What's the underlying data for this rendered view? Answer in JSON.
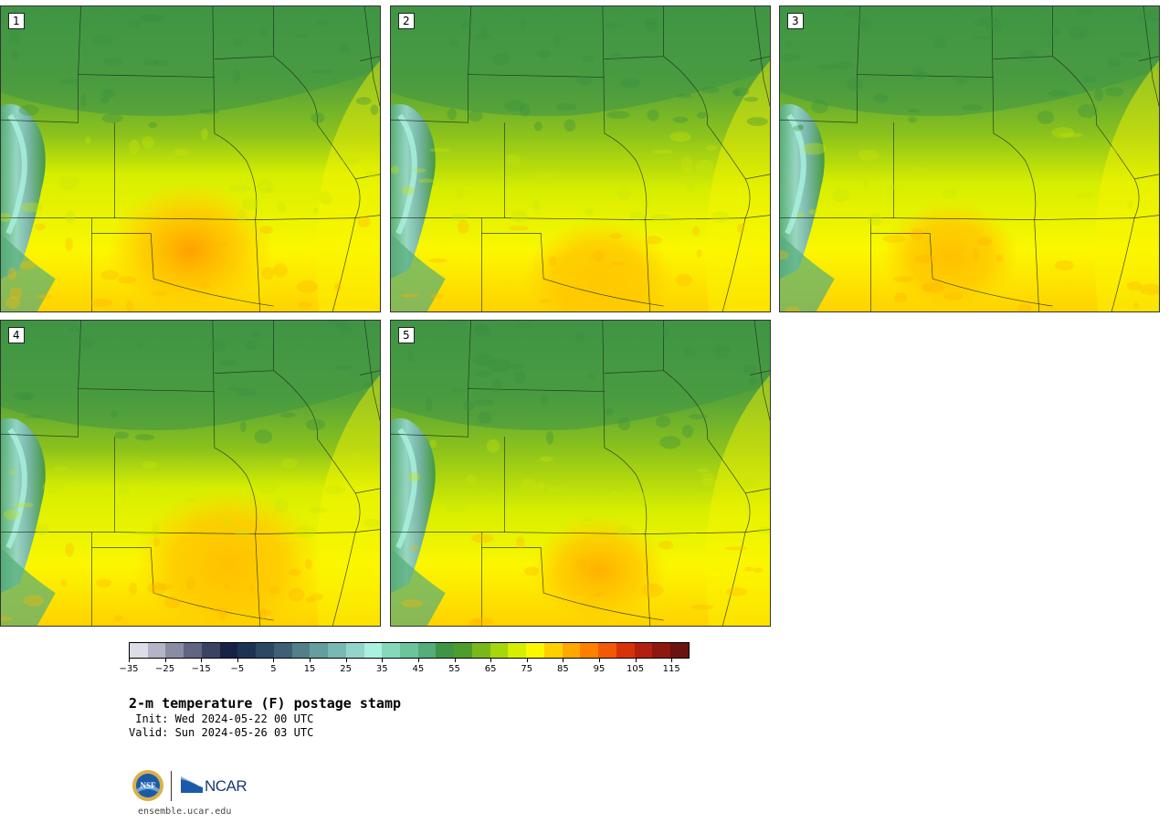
{
  "panels": [
    {
      "label": "1",
      "variant": 1
    },
    {
      "label": "2",
      "variant": 2
    },
    {
      "label": "3",
      "variant": 3
    },
    {
      "label": "4",
      "variant": 4
    },
    {
      "label": "5",
      "variant": 5
    }
  ],
  "colorbar": {
    "colors": [
      "#dcdde6",
      "#b3b4c6",
      "#8a8ca4",
      "#616581",
      "#3b4362",
      "#172244",
      "#1d3353",
      "#2c4862",
      "#3e5f74",
      "#527f88",
      "#649e9e",
      "#7ab8b4",
      "#94d5cb",
      "#aaf1e0",
      "#86d9b8",
      "#6bc49c",
      "#55ad7a",
      "#3f9545",
      "#4c9d2c",
      "#78b81a",
      "#a6d60c",
      "#d6ee00",
      "#fbf700",
      "#ffd000",
      "#ffa800",
      "#ff8000",
      "#f25a08",
      "#d8320a",
      "#b4200f",
      "#8e1810",
      "#6a1410"
    ],
    "tick_labels": [
      "-35",
      "-25",
      "-15",
      "-5",
      "5",
      "15",
      "25",
      "35",
      "45",
      "55",
      "65",
      "75",
      "85",
      "95",
      "105",
      "115"
    ]
  },
  "title": "2-m temperature (F) postage stamp",
  "init": " Init: Wed 2024-05-22 00 UTC",
  "valid": "Valid: Sun 2024-05-26 03 UTC",
  "logos": {
    "nsf": "NSF",
    "ncar": "NCAR"
  },
  "website": "ensemble.ucar.edu"
}
